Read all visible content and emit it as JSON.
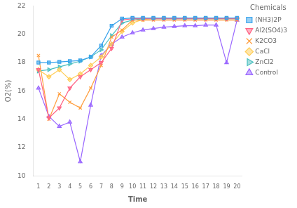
{
  "chart_data": {
    "type": "line",
    "xlabel": "Time",
    "ylabel": "O2(%)",
    "x": [
      1,
      2,
      3,
      4,
      5,
      6,
      7,
      8,
      9,
      10,
      11,
      12,
      13,
      14,
      15,
      16,
      17,
      18,
      19,
      20
    ],
    "series": [
      {
        "name": "(NH3)2P",
        "marker": "square",
        "values": [
          18.0,
          18.0,
          18.05,
          18.1,
          18.15,
          18.4,
          19.2,
          20.6,
          21.1,
          21.15,
          21.15,
          21.15,
          21.15,
          21.15,
          21.15,
          21.15,
          21.15,
          21.15,
          21.15,
          21.15
        ]
      },
      {
        "name": "Al2(SO4)3",
        "marker": "triangle_down",
        "values": [
          17.5,
          14.1,
          14.8,
          16.2,
          17.0,
          17.5,
          18.0,
          19.0,
          21.0,
          21.1,
          21.1,
          21.1,
          21.1,
          21.1,
          21.1,
          21.1,
          21.1,
          21.1,
          21.1,
          21.1
        ]
      },
      {
        "name": "K2CO3",
        "marker": "x",
        "values": [
          18.5,
          14.0,
          15.8,
          15.2,
          14.8,
          16.2,
          17.8,
          19.8,
          20.3,
          21.0,
          21.0,
          21.0,
          21.0,
          21.0,
          21.0,
          21.0,
          21.0,
          21.0,
          21.0,
          21.0
        ]
      },
      {
        "name": "CaCl",
        "marker": "diamond",
        "values": [
          17.5,
          17.0,
          17.5,
          16.8,
          17.2,
          17.8,
          18.4,
          19.3,
          20.2,
          20.8,
          21.05,
          21.1,
          21.1,
          21.1,
          21.1,
          21.1,
          21.1,
          21.1,
          21.1,
          21.1
        ]
      },
      {
        "name": "ZnCl2",
        "marker": "triangle_right",
        "values": [
          17.4,
          17.5,
          17.7,
          17.9,
          18.1,
          18.4,
          18.9,
          19.9,
          20.8,
          21.0,
          21.1,
          21.1,
          21.1,
          21.1,
          21.1,
          21.1,
          21.1,
          21.1,
          21.1,
          21.1
        ]
      },
      {
        "name": "Control",
        "marker": "triangle",
        "values": [
          16.2,
          14.2,
          13.5,
          13.8,
          11.0,
          15.0,
          18.5,
          19.3,
          19.8,
          20.1,
          20.3,
          20.4,
          20.5,
          20.55,
          20.6,
          20.6,
          20.65,
          20.65,
          18.0,
          21.0
        ]
      }
    ],
    "xlim": [
      0.5,
      20.5
    ],
    "xticks": [
      1,
      2,
      3,
      4,
      5,
      6,
      7,
      8,
      9,
      10,
      11,
      12,
      13,
      14,
      15,
      16,
      17,
      18,
      19,
      20
    ],
    "ylim": [
      10,
      22
    ],
    "yticks": [
      10,
      12,
      14,
      16,
      18,
      20,
      22
    ],
    "grid": false,
    "legend": "right",
    "legend_title": "Chemicals"
  }
}
